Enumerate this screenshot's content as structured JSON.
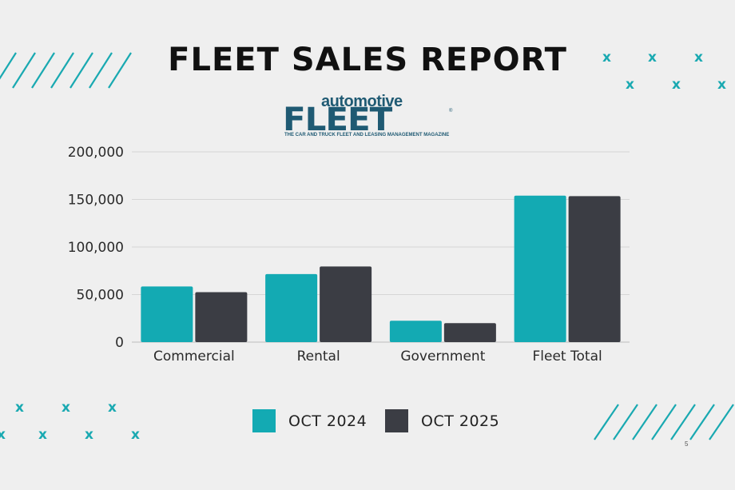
{
  "title": "FLEET SALES REPORT",
  "logo": {
    "word_small": "automotive",
    "word_big": "FLEET",
    "tagline": "THE CAR AND TRUCK FLEET AND LEASING MANAGEMENT MAGAZINE",
    "reg": "®"
  },
  "page_number": "5",
  "colors": {
    "oct2024": "#13aab3",
    "oct2025": "#3b3d44",
    "accent": "#19a9b1"
  },
  "chart_data": {
    "type": "bar",
    "categories": [
      "Commercial",
      "Rental",
      "Government",
      "Fleet Total"
    ],
    "series": [
      {
        "name": "OCT 2024",
        "values": [
          58500,
          71500,
          22500,
          154000
        ]
      },
      {
        "name": "OCT 2025",
        "values": [
          52500,
          79500,
          20000,
          153500
        ]
      }
    ],
    "ylim": [
      0,
      200000
    ],
    "yticks": [
      0,
      50000,
      100000,
      150000,
      200000
    ],
    "ytick_labels": [
      "0",
      "50,000",
      "100,000",
      "150,000",
      "200,000"
    ],
    "grid": true,
    "legend": "bottom-center"
  }
}
